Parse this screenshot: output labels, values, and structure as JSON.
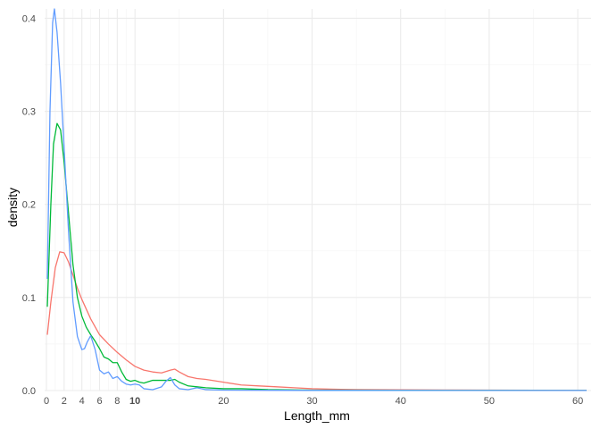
{
  "chart_data": {
    "type": "line",
    "title": "",
    "xlabel": "Length_mm",
    "ylabel": "density",
    "xlim": [
      0,
      61
    ],
    "ylim": [
      0,
      0.41
    ],
    "grid": true,
    "legend": "none",
    "x_ticks": [
      {
        "value": 0,
        "label": "0"
      },
      {
        "value": 2,
        "label": "2"
      },
      {
        "value": 4,
        "label": "4"
      },
      {
        "value": 6,
        "label": "6"
      },
      {
        "value": 8,
        "label": "8"
      },
      {
        "value": 10,
        "label": "10"
      },
      {
        "value": 20,
        "label": "20"
      },
      {
        "value": 30,
        "label": "30"
      },
      {
        "value": 40,
        "label": "40"
      },
      {
        "value": 50,
        "label": "50"
      },
      {
        "value": 60,
        "label": "60"
      }
    ],
    "y_ticks": [
      {
        "value": 0.0,
        "label": "0.0"
      },
      {
        "value": 0.1,
        "label": "0.1"
      },
      {
        "value": 0.2,
        "label": "0.2"
      },
      {
        "value": 0.3,
        "label": "0.3"
      },
      {
        "value": 0.4,
        "label": "0.4"
      }
    ],
    "series": [
      {
        "color": "#f8766d",
        "points": [
          [
            0.1,
            0.06
          ],
          [
            0.5,
            0.095
          ],
          [
            1.0,
            0.132
          ],
          [
            1.5,
            0.149
          ],
          [
            2.0,
            0.148
          ],
          [
            2.5,
            0.138
          ],
          [
            3.0,
            0.124
          ],
          [
            3.5,
            0.11
          ],
          [
            4.0,
            0.098
          ],
          [
            5.0,
            0.077
          ],
          [
            6.0,
            0.06
          ],
          [
            7.0,
            0.05
          ],
          [
            8.0,
            0.041
          ],
          [
            9.0,
            0.033
          ],
          [
            10.0,
            0.026
          ],
          [
            11.0,
            0.022
          ],
          [
            12.0,
            0.02
          ],
          [
            13.0,
            0.019
          ],
          [
            14.0,
            0.022
          ],
          [
            14.5,
            0.023
          ],
          [
            15.0,
            0.02
          ],
          [
            16.0,
            0.015
          ],
          [
            17.0,
            0.013
          ],
          [
            18.0,
            0.012
          ],
          [
            20.0,
            0.009
          ],
          [
            22.0,
            0.006
          ],
          [
            24.0,
            0.005
          ],
          [
            26.0,
            0.004
          ],
          [
            28.0,
            0.003
          ],
          [
            30.0,
            0.002
          ],
          [
            32.0,
            0.0015
          ],
          [
            35.0,
            0.001
          ],
          [
            40.0,
            0.0008
          ],
          [
            45.0,
            0.0006
          ],
          [
            50.0,
            0.0004
          ],
          [
            55.0,
            0.0003
          ],
          [
            60.0,
            0.0002
          ],
          [
            61.0,
            0.0002
          ]
        ]
      },
      {
        "color": "#00ba38",
        "points": [
          [
            0.1,
            0.09
          ],
          [
            0.5,
            0.2
          ],
          [
            0.8,
            0.265
          ],
          [
            1.2,
            0.287
          ],
          [
            1.6,
            0.28
          ],
          [
            2.0,
            0.245
          ],
          [
            2.5,
            0.19
          ],
          [
            3.0,
            0.135
          ],
          [
            3.5,
            0.1
          ],
          [
            4.0,
            0.08
          ],
          [
            4.5,
            0.068
          ],
          [
            5.0,
            0.06
          ],
          [
            5.5,
            0.053
          ],
          [
            6.0,
            0.045
          ],
          [
            6.5,
            0.036
          ],
          [
            7.0,
            0.034
          ],
          [
            7.5,
            0.03
          ],
          [
            8.0,
            0.03
          ],
          [
            8.5,
            0.02
          ],
          [
            9.0,
            0.012
          ],
          [
            9.5,
            0.01
          ],
          [
            10.0,
            0.011
          ],
          [
            10.5,
            0.009
          ],
          [
            11.0,
            0.008
          ],
          [
            12.0,
            0.011
          ],
          [
            13.0,
            0.011
          ],
          [
            14.0,
            0.011
          ],
          [
            14.5,
            0.012
          ],
          [
            15.0,
            0.009
          ],
          [
            16.0,
            0.005
          ],
          [
            17.0,
            0.004
          ],
          [
            18.0,
            0.003
          ],
          [
            20.0,
            0.002
          ],
          [
            22.0,
            0.002
          ],
          [
            25.0,
            0.001
          ],
          [
            30.0,
            0.0005
          ],
          [
            40.0,
            0.0003
          ],
          [
            50.0,
            0.0002
          ],
          [
            61.0,
            0.0001
          ]
        ]
      },
      {
        "color": "#619cff",
        "points": [
          [
            0.1,
            0.12
          ],
          [
            0.4,
            0.3
          ],
          [
            0.7,
            0.395
          ],
          [
            0.9,
            0.41
          ],
          [
            1.2,
            0.385
          ],
          [
            1.6,
            0.33
          ],
          [
            2.0,
            0.26
          ],
          [
            2.5,
            0.17
          ],
          [
            3.0,
            0.095
          ],
          [
            3.5,
            0.058
          ],
          [
            4.0,
            0.044
          ],
          [
            4.3,
            0.045
          ],
          [
            4.6,
            0.052
          ],
          [
            5.0,
            0.059
          ],
          [
            5.5,
            0.044
          ],
          [
            6.0,
            0.022
          ],
          [
            6.5,
            0.018
          ],
          [
            7.0,
            0.02
          ],
          [
            7.5,
            0.013
          ],
          [
            8.0,
            0.015
          ],
          [
            8.5,
            0.01
          ],
          [
            9.0,
            0.007
          ],
          [
            9.5,
            0.006
          ],
          [
            10.0,
            0.007
          ],
          [
            10.5,
            0.006
          ],
          [
            11.0,
            0.002
          ],
          [
            12.0,
            0.001
          ],
          [
            13.0,
            0.004
          ],
          [
            13.5,
            0.01
          ],
          [
            14.0,
            0.014
          ],
          [
            14.5,
            0.006
          ],
          [
            15.0,
            0.002
          ],
          [
            16.0,
            0.001
          ],
          [
            17.0,
            0.003
          ],
          [
            18.0,
            0.001
          ],
          [
            20.0,
            0.0005
          ],
          [
            25.0,
            0.0003
          ],
          [
            30.0,
            0.0002
          ],
          [
            61.0,
            0.0001
          ]
        ]
      }
    ]
  }
}
